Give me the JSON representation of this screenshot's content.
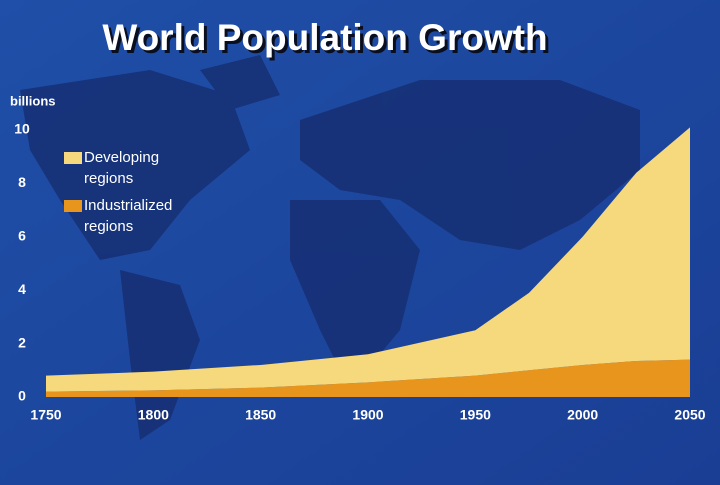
{
  "chart_data": {
    "type": "stacked_area",
    "title": "World Population Growth",
    "y_label": "billions",
    "x": [
      1750,
      1800,
      1850,
      1900,
      1950,
      1975,
      2000,
      2025,
      2050
    ],
    "series": [
      {
        "name": "Industrialized regions",
        "color": "#e8951e",
        "values": [
          0.2,
          0.25,
          0.35,
          0.55,
          0.8,
          1.0,
          1.2,
          1.35,
          1.4
        ]
      },
      {
        "name": "Developing regions",
        "color": "#f6d97c",
        "values": [
          0.6,
          0.7,
          0.85,
          1.05,
          1.7,
          2.9,
          4.8,
          7.05,
          8.7
        ]
      }
    ],
    "xlim": [
      1750,
      2050
    ],
    "xticks": [
      1750,
      1800,
      1850,
      1900,
      1950,
      2000,
      2050
    ],
    "ylim": [
      0,
      10
    ],
    "yticks": [
      0,
      2,
      4,
      6,
      8,
      10
    ],
    "legend": "top-left"
  }
}
